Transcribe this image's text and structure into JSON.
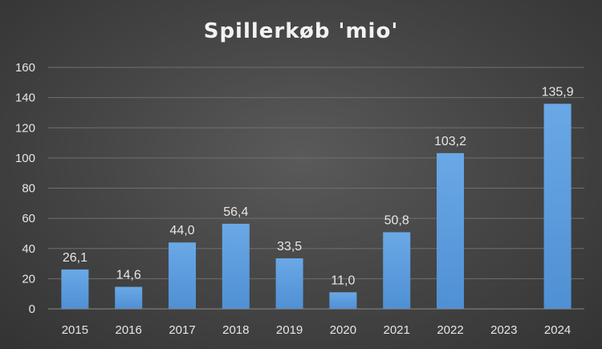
{
  "chart_data": {
    "type": "bar",
    "title": "Spillerkøb 'mio'",
    "categories": [
      "2015",
      "2016",
      "2017",
      "2018",
      "2019",
      "2020",
      "2021",
      "2022",
      "2023",
      "2024"
    ],
    "values": [
      26.1,
      14.6,
      44.0,
      56.4,
      33.5,
      11.0,
      50.8,
      103.2,
      null,
      135.9
    ],
    "data_labels": [
      "26,1",
      "14,6",
      "44,0",
      "56,4",
      "33,5",
      "11,0",
      "50,8",
      "103,2",
      "",
      "135,9"
    ],
    "yticks": [
      "0",
      "20",
      "40",
      "60",
      "80",
      "100",
      "120",
      "140",
      "160"
    ],
    "ylim": [
      0,
      160
    ],
    "grid": true,
    "legend": "none",
    "bar_color": "#4f90d4",
    "bar_color_light": "#6aa8e6",
    "background": "#474747"
  }
}
